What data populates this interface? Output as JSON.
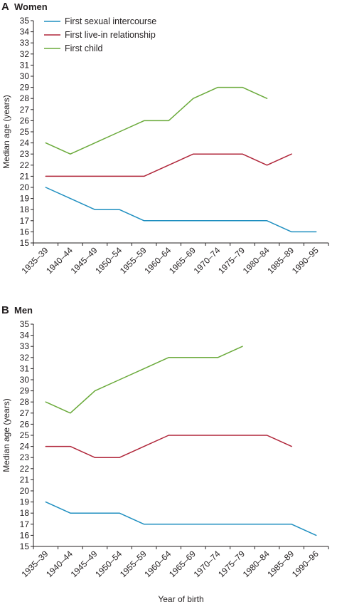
{
  "colors": {
    "first_sexual_intercourse": "#1f8fc0",
    "first_live_in_relationship": "#b0263a",
    "first_child": "#6aaa3a",
    "axis": "#231f20"
  },
  "chart_data": [
    {
      "type": "line",
      "panel_letter": "A",
      "title": "Women",
      "xlabel": "",
      "ylabel": "Median age (years)",
      "ylim": [
        15,
        35
      ],
      "yticks": [
        15,
        16,
        17,
        18,
        19,
        20,
        21,
        22,
        23,
        24,
        25,
        26,
        27,
        28,
        29,
        30,
        31,
        32,
        33,
        34,
        35
      ],
      "categories": [
        "1935–39",
        "1940–44",
        "1945–49",
        "1950–54",
        "1955–59",
        "1960–64",
        "1965–69",
        "1970–74",
        "1975–79",
        "1980–84",
        "1985–89",
        "1990–95"
      ],
      "grid": false,
      "legend": "top-left",
      "series": [
        {
          "name": "First sexual intercourse",
          "color": "#1f8fc0",
          "values": [
            20,
            19,
            18,
            18,
            17,
            17,
            17,
            17,
            17,
            17,
            16,
            16
          ]
        },
        {
          "name": "First live-in relationship",
          "color": "#b0263a",
          "values": [
            21,
            21,
            21,
            21,
            21,
            22,
            23,
            23,
            23,
            22,
            23,
            null
          ]
        },
        {
          "name": "First child",
          "color": "#6aaa3a",
          "values": [
            24,
            23,
            24,
            25,
            26,
            26,
            28,
            29,
            29,
            28,
            null,
            null
          ]
        }
      ]
    },
    {
      "type": "line",
      "panel_letter": "B",
      "title": "Men",
      "xlabel": "Year of birth",
      "ylabel": "Median age (years)",
      "ylim": [
        15,
        35
      ],
      "yticks": [
        15,
        16,
        17,
        18,
        19,
        20,
        21,
        22,
        23,
        24,
        25,
        26,
        27,
        28,
        29,
        30,
        31,
        32,
        33,
        34,
        35
      ],
      "categories": [
        "1935–39",
        "1940–44",
        "1945–49",
        "1950–54",
        "1955–59",
        "1960–64",
        "1965–69",
        "1970–74",
        "1975–79",
        "1980–84",
        "1985–89",
        "1990–96"
      ],
      "grid": false,
      "legend": "none",
      "series": [
        {
          "name": "First sexual intercourse",
          "color": "#1f8fc0",
          "values": [
            19,
            18,
            18,
            18,
            17,
            17,
            17,
            17,
            17,
            17,
            17,
            16
          ]
        },
        {
          "name": "First live-in relationship",
          "color": "#b0263a",
          "values": [
            24,
            24,
            23,
            23,
            24,
            25,
            25,
            25,
            25,
            25,
            24,
            null
          ]
        },
        {
          "name": "First child",
          "color": "#6aaa3a",
          "values": [
            28,
            27,
            29,
            30,
            31,
            32,
            32,
            32,
            33,
            null,
            null,
            null
          ]
        }
      ]
    }
  ]
}
